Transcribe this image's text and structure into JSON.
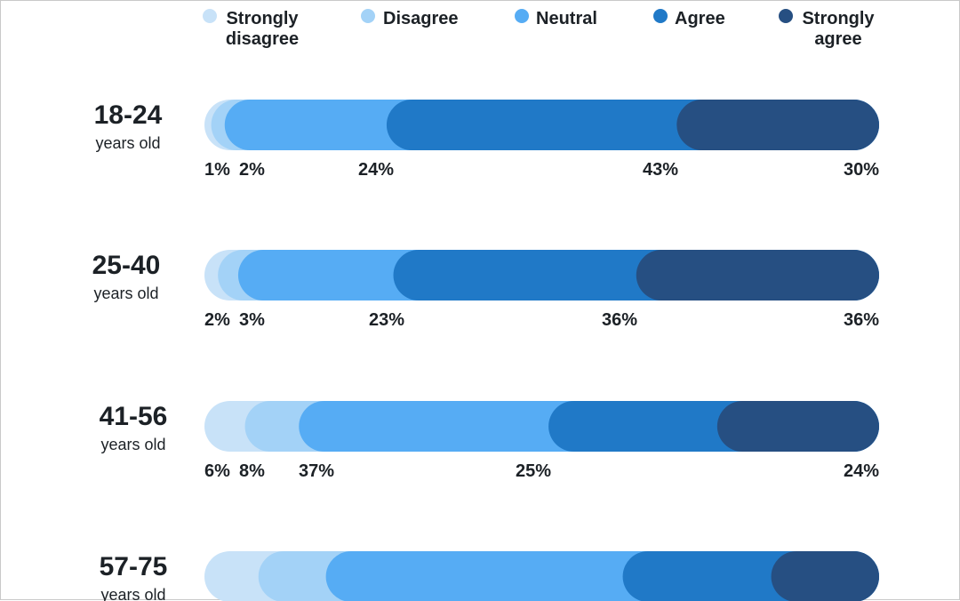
{
  "chart_data": {
    "type": "bar",
    "orientation": "horizontal",
    "stacked": true,
    "legend_position": "top",
    "grid": false,
    "categories": [
      {
        "label": "18-24",
        "sublabel": "years old"
      },
      {
        "label": "25-40",
        "sublabel": "years old"
      },
      {
        "label": "41-56",
        "sublabel": "years old"
      },
      {
        "label": "57-75",
        "sublabel": "years old"
      }
    ],
    "series": [
      {
        "name": "Strongly\ndisagree",
        "color": "#c8e2f8",
        "values": [
          1,
          2,
          6,
          8
        ]
      },
      {
        "name": "Disagree",
        "color": "#a3d2f7",
        "values": [
          2,
          3,
          8,
          10
        ]
      },
      {
        "name": "Neutral",
        "color": "#56acf4",
        "values": [
          24,
          23,
          37,
          44
        ]
      },
      {
        "name": "Agree",
        "color": "#2079c7",
        "values": [
          43,
          36,
          25,
          22
        ]
      },
      {
        "name": "Strongly\nagree",
        "color": "#264f82",
        "values": [
          30,
          36,
          24,
          16
        ]
      }
    ],
    "value_labels": [
      [
        "1%",
        "2%",
        "24%",
        "43%",
        "30%"
      ],
      [
        "2%",
        "3%",
        "23%",
        "36%",
        "36%"
      ],
      [
        "6%",
        "8%",
        "37%",
        "25%",
        "24%"
      ],
      [
        null,
        null,
        null,
        null,
        null
      ]
    ]
  }
}
